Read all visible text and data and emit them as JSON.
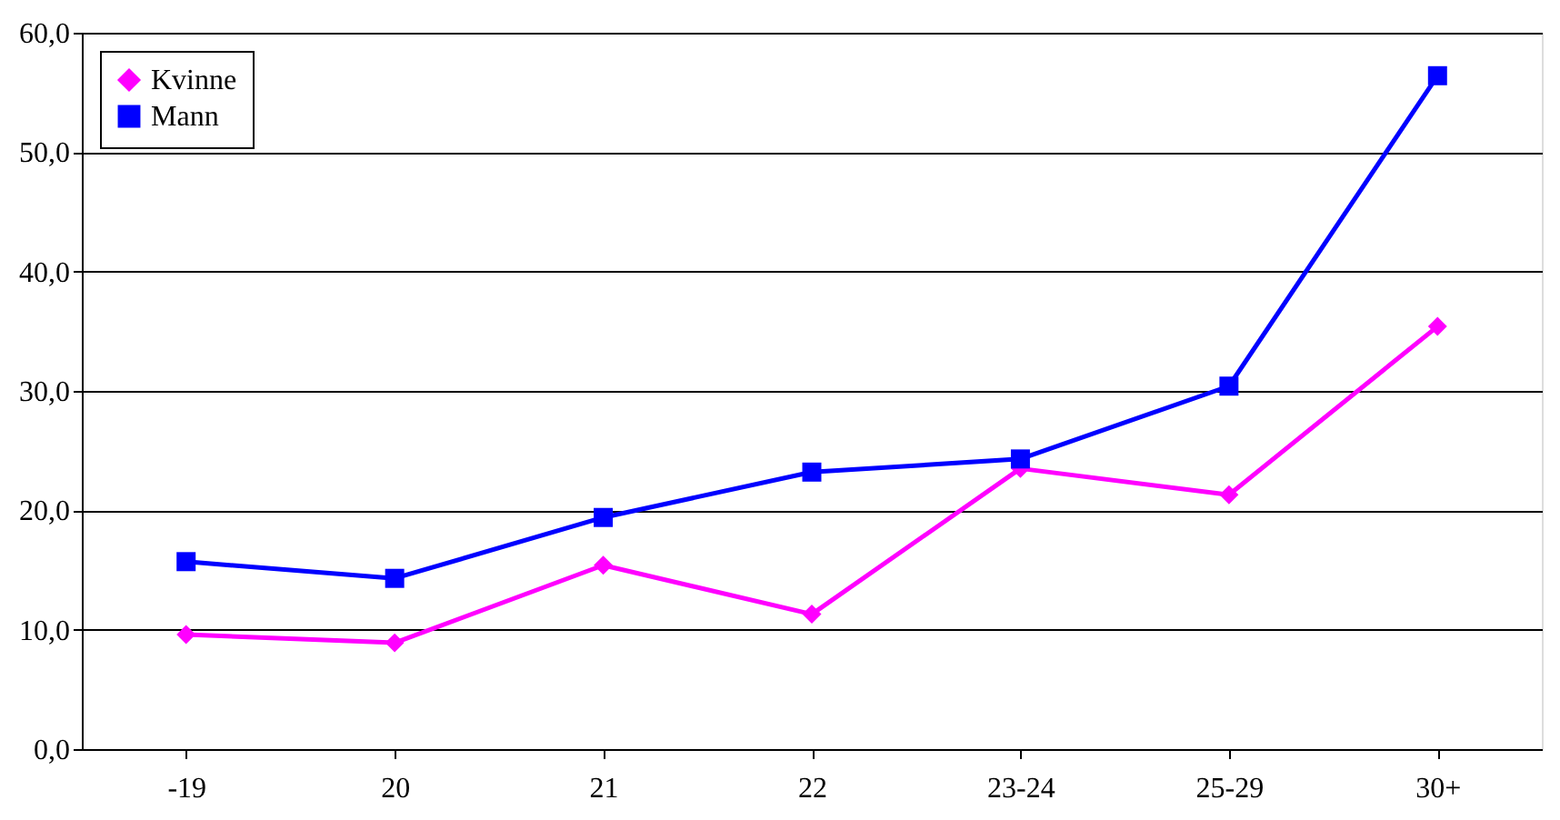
{
  "chart_data": {
    "type": "line",
    "categories": [
      "-19",
      "20",
      "21",
      "22",
      "23-24",
      "25-29",
      "30+"
    ],
    "series": [
      {
        "name": "Kvinne",
        "color": "#ff00ff",
        "marker": "diamond",
        "values": [
          9.6,
          8.9,
          15.4,
          11.3,
          23.5,
          21.3,
          35.4
        ]
      },
      {
        "name": "Mann",
        "color": "#0000ff",
        "marker": "square",
        "values": [
          15.7,
          14.3,
          19.4,
          23.2,
          24.3,
          30.4,
          56.4
        ]
      }
    ],
    "ylim": [
      0,
      60
    ],
    "yticks": [
      {
        "value": 0,
        "label": "0,0"
      },
      {
        "value": 10,
        "label": "10,0"
      },
      {
        "value": 20,
        "label": "20,0"
      },
      {
        "value": 30,
        "label": "30,0"
      },
      {
        "value": 40,
        "label": "40,0"
      },
      {
        "value": 50,
        "label": "50,0"
      },
      {
        "value": 60,
        "label": "60,0"
      }
    ],
    "grid": "y",
    "legend": "top left",
    "line_style": "solid"
  }
}
